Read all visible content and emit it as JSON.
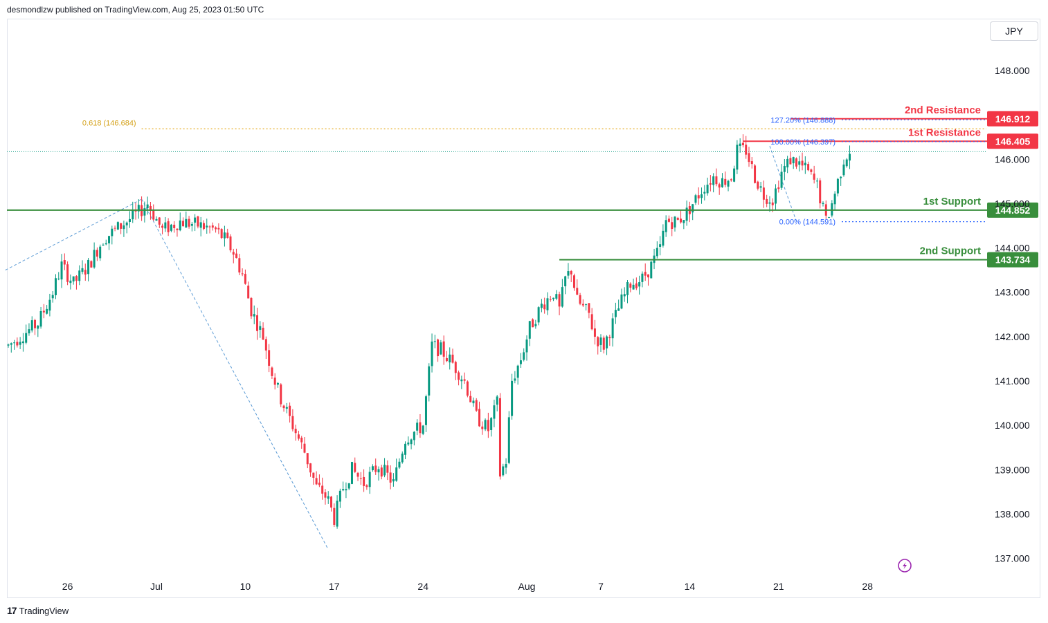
{
  "header": {
    "published": "desmondlzw published on TradingView.com, Aug 25, 2023 01:50 UTC"
  },
  "footer": {
    "brand": "TradingView"
  },
  "currency": "JPY",
  "colors": {
    "up": "#089981",
    "down": "#f23645",
    "support": "#388e3c",
    "resistance": "#f23645",
    "fib": "#2962ff",
    "fib618": "#e6a817",
    "trend": "#5b9bd5"
  },
  "chart_data": {
    "type": "candlestick",
    "y_axis": {
      "min": 137.0,
      "max": 148.0,
      "ticks": [
        "137.000",
        "138.000",
        "139.000",
        "140.000",
        "141.000",
        "142.000",
        "143.000",
        "144.000",
        "145.000",
        "146.000",
        "148.000"
      ]
    },
    "x_axis": {
      "ticks": [
        {
          "label": "26",
          "i": 20
        },
        {
          "label": "Jul",
          "i": 50
        },
        {
          "label": "10",
          "i": 80
        },
        {
          "label": "17",
          "i": 110
        },
        {
          "label": "24",
          "i": 140
        },
        {
          "label": "Aug",
          "i": 175
        },
        {
          "label": "7",
          "i": 200
        },
        {
          "label": "14",
          "i": 230
        },
        {
          "label": "21",
          "i": 260
        },
        {
          "label": "28",
          "i": 290
        }
      ]
    },
    "levels": [
      {
        "name": "2nd Resistance",
        "value": 146.912,
        "badge": "146.912",
        "kind": "resistance",
        "start_i": 264
      },
      {
        "name": "1st Resistance",
        "value": 146.405,
        "badge": "146.405",
        "kind": "resistance",
        "start_i": 248
      },
      {
        "name": "1st Support",
        "value": 144.852,
        "badge": "144.852",
        "kind": "support",
        "start_i": 0
      },
      {
        "name": "2nd Support",
        "value": 143.734,
        "badge": "143.734",
        "kind": "support",
        "start_i": 186
      }
    ],
    "fib_labels": [
      {
        "text": "127.20% (146.888)",
        "value": 146.888
      },
      {
        "text": "100.00% (146.397)",
        "value": 146.397
      },
      {
        "text": "0.00% (144.591)",
        "value": 144.591
      }
    ],
    "fib_618": {
      "text": "0.618 (146.684)",
      "value": 146.684
    },
    "last_price": 146.17,
    "candles": []
  }
}
